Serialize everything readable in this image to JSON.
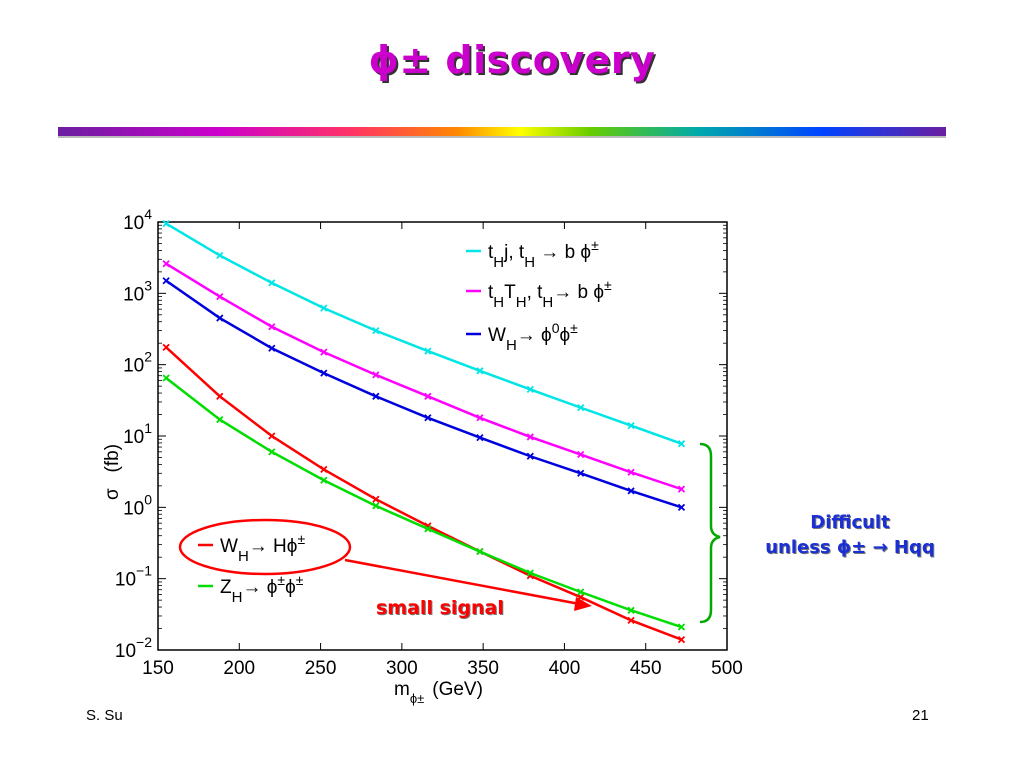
{
  "slide": {
    "title": "ϕ± discovery",
    "side_note_line1": "Difficult",
    "side_note_line2": "unless ϕ± → Hqq",
    "callout": "small signal",
    "author": "S. Su",
    "page_number": "21"
  },
  "chart_data": {
    "type": "line",
    "xlabel": "m",
    "xlabel_sub": "ϕ±",
    "xlabel_unit": "(GeV)",
    "ylabel": "σ   (fb)",
    "xlim": [
      150,
      500
    ],
    "ylim": [
      0.01,
      10000
    ],
    "yscale": "log",
    "grid": false,
    "xticks": [
      150,
      200,
      250,
      300,
      350,
      400,
      450,
      500
    ],
    "yticks": [
      {
        "exp": -2,
        "label_base": "10",
        "label_exp": "−2"
      },
      {
        "exp": -1,
        "label_base": "10",
        "label_exp": "−1"
      },
      {
        "exp": 0,
        "label_base": "10",
        "label_exp": "0"
      },
      {
        "exp": 1,
        "label_base": "10",
        "label_exp": "1"
      },
      {
        "exp": 2,
        "label_base": "10",
        "label_exp": "2"
      },
      {
        "exp": 3,
        "label_base": "10",
        "label_exp": "3"
      },
      {
        "exp": 4,
        "label_base": "10",
        "label_exp": "4"
      }
    ],
    "x": [
      155,
      188,
      220,
      252,
      284,
      316,
      348,
      379,
      410,
      441,
      472
    ],
    "series": [
      {
        "id": "thj",
        "color": "#00e5e5",
        "legend_html": "t<tspan baseline-shift='sub' font-size='15'>H</tspan>j, t<tspan baseline-shift='sub' font-size='15'>H</tspan> → b ϕ<tspan baseline-shift='super' font-size='14'>±</tspan>",
        "values": [
          9500,
          3400,
          1400,
          620,
          300,
          155,
          82,
          45,
          25,
          14,
          7.8
        ]
      },
      {
        "id": "thth",
        "color": "#ff00ff",
        "legend_html": "t<tspan baseline-shift='sub' font-size='15'>H</tspan>T<tspan baseline-shift='sub' font-size='15'>H</tspan>, t<tspan baseline-shift='sub' font-size='15'>H</tspan>→ b ϕ<tspan baseline-shift='super' font-size='14'>±</tspan>",
        "values": [
          2600,
          900,
          340,
          150,
          72,
          36,
          18,
          9.7,
          5.5,
          3.1,
          1.8
        ]
      },
      {
        "id": "wh0",
        "color": "#0000dd",
        "legend_html": "W<tspan baseline-shift='sub' font-size='15'>H</tspan>→ ϕ<tspan baseline-shift='super' font-size='14'>0</tspan>ϕ<tspan baseline-shift='super' font-size='14'>±</tspan>",
        "values": [
          1500,
          450,
          170,
          76,
          36,
          18,
          9.5,
          5.2,
          3.0,
          1.7,
          1.0
        ]
      },
      {
        "id": "whh",
        "color": "#ff0000",
        "legend_html": "W<tspan baseline-shift='sub' font-size='15'>H</tspan>→ Hϕ<tspan baseline-shift='super' font-size='14'>±</tspan>",
        "values": [
          175,
          36,
          10,
          3.4,
          1.3,
          0.55,
          0.24,
          0.11,
          0.055,
          0.026,
          0.014
        ]
      },
      {
        "id": "zh",
        "color": "#00dd00",
        "legend_html": "Z<tspan baseline-shift='sub' font-size='15'>H</tspan>→ ϕ<tspan baseline-shift='super' font-size='14'>±</tspan>ϕ<tspan baseline-shift='super' font-size='14'>±</tspan>",
        "values": [
          65,
          17,
          6.0,
          2.4,
          1.05,
          0.5,
          0.24,
          0.12,
          0.065,
          0.036,
          0.021
        ]
      }
    ]
  },
  "colors": {
    "title": "#cc00cc",
    "note": "#1a2fd6",
    "callout": "#ff0000",
    "brace": "#00aa00",
    "ellipse": "#ff0000"
  }
}
